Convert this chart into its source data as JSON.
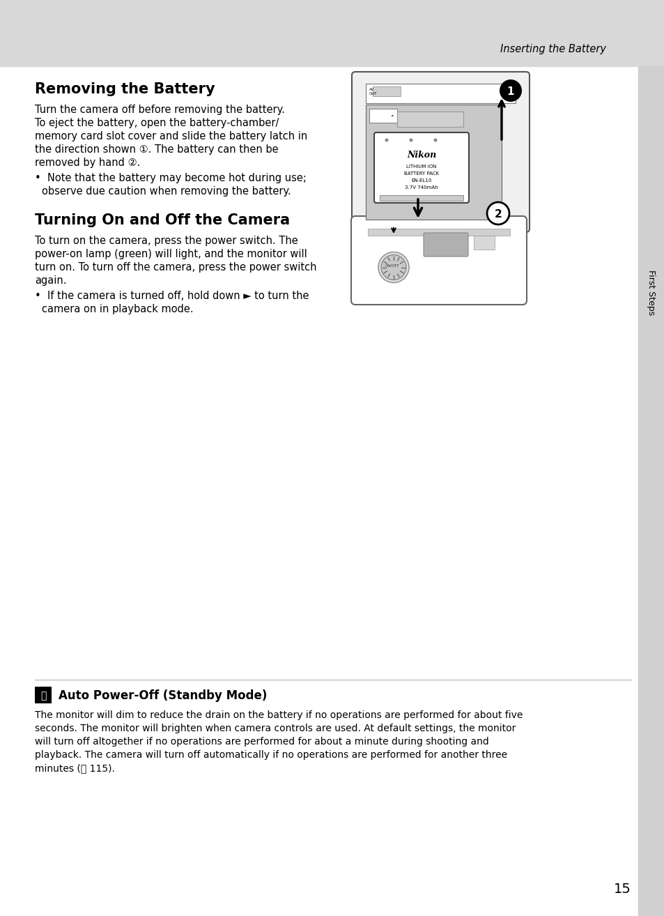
{
  "header_bg_color": "#d8d8d8",
  "header_text": "Inserting the Battery",
  "header_text_color": "#000000",
  "page_bg_color": "#ffffff",
  "sidebar_color": "#d0d0d0",
  "page_number": "15",
  "title1": "Removing the Battery",
  "title2": "Turning On and Off the Camera",
  "title3": "Auto Power-Off (Standby Mode)",
  "body_color": "#000000",
  "body_fontsize": 10.5,
  "title_fontsize": 15,
  "header_fontsize": 11,
  "para1_line1": "Turn the camera off before removing the battery.",
  "para1_line2": "To eject the battery, open the battery-chamber/",
  "para1_line3": "memory card slot cover and slide the battery latch in",
  "para1_line4": "the direction shown ①. The battery can then be",
  "para1_line5": "removed by hand ②.",
  "bullet1a": "•  Note that the battery may become hot during use;",
  "bullet1b": "    observe due caution when removing the battery.",
  "para2_line1": "To turn on the camera, press the power switch. The",
  "para2_line2": "power-on lamp (green) will light, and the monitor will",
  "para2_line3": "turn on. To turn off the camera, press the power switch",
  "para2_line4": "again.",
  "bullet2a": "•  If the camera is turned off, hold down ► to turn the",
  "bullet2b": "    camera on in playback mode.",
  "auto_power_line1": "The monitor will dim to reduce the drain on the battery if no operations are performed for about five",
  "auto_power_line2": "seconds. The monitor will brighten when camera controls are used. At default settings, the monitor",
  "auto_power_line3": "will turn off altogether if no operations are performed for about a minute during shooting and",
  "auto_power_line4": "playback. The camera will turn off automatically if no operations are performed for another three",
  "auto_power_line5": "minutes (ⓐ 115).",
  "nikon_text": "Nikon",
  "battery_line1": "LITHIUM ION",
  "battery_line2": "BATTERY PACK",
  "battery_line3": "EN-EL10",
  "battery_line4": "3.7V 740mAh"
}
